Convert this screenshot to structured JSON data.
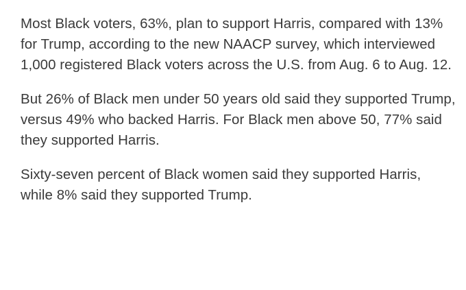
{
  "article": {
    "paragraphs": [
      {
        "text": "Most Black voters, 63%, plan to support Harris, compared with 13% for Trump, according to the new NAACP survey, which interviewed 1,000 registered Black voters across the U.S. from Aug. 6 to Aug. 12."
      },
      {
        "text": "But 26% of Black men under 50 years old said they supported Trump, versus 49% who backed Harris. For Black men above 50, 77% said they supported Harris."
      },
      {
        "text": "Sixty-seven percent of Black women said they supported Harris, while 8% said they supported Trump."
      }
    ]
  }
}
